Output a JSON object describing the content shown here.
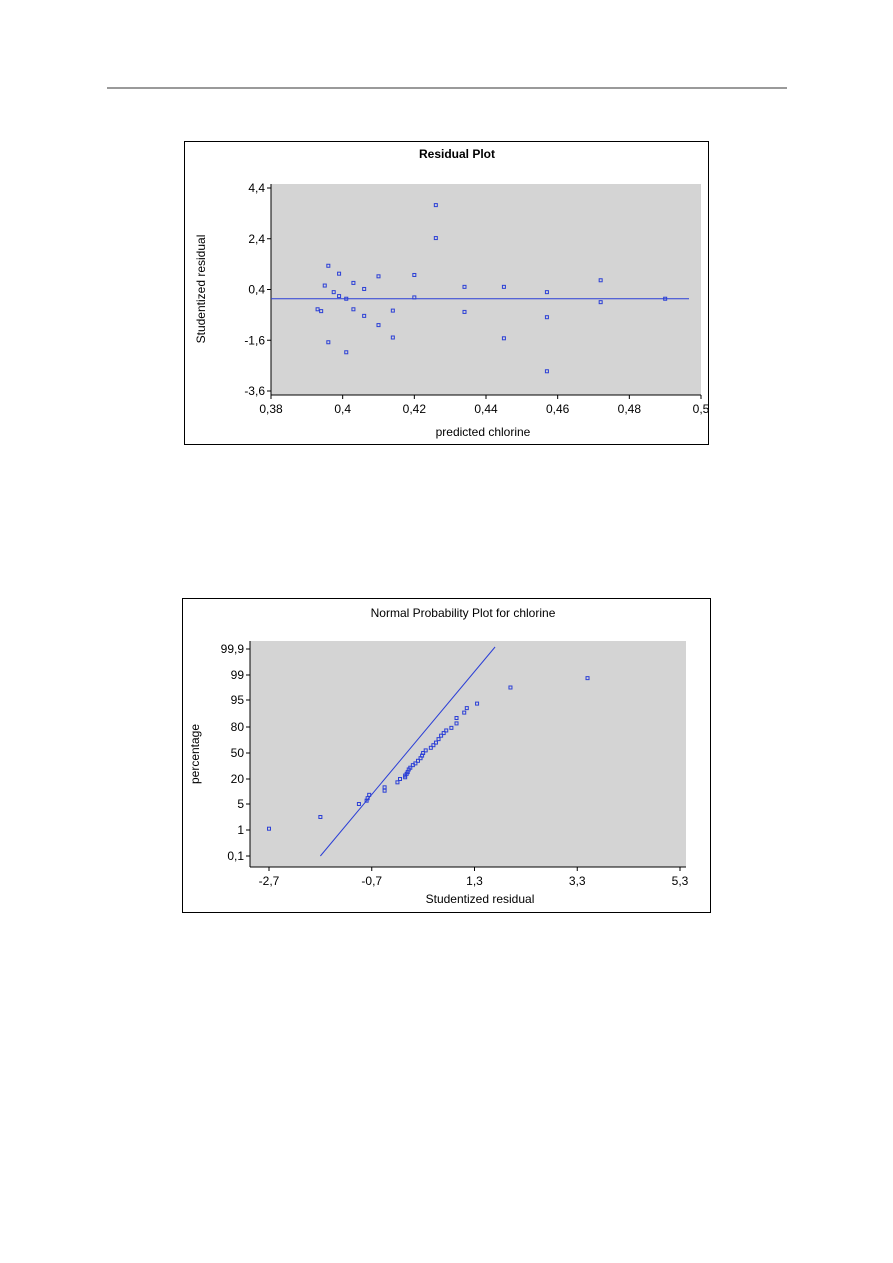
{
  "colors": {
    "plot_area": "#d4d4d4",
    "marker": "#2b3fd6",
    "fit_line": "#2b3fd6",
    "axis": "#000000"
  },
  "chart_data": [
    {
      "type": "scatter",
      "title": "Residual Plot",
      "xlabel": "predicted chlorine",
      "ylabel": "Studentized residual",
      "xlim": [
        0.38,
        0.5
      ],
      "ylim": [
        -3.6,
        4.4
      ],
      "xticks": [
        "0,38",
        "0,4",
        "0,42",
        "0,44",
        "0,46",
        "0,48",
        "0,5"
      ],
      "yticks": [
        "4,4",
        "2,4",
        "0,4",
        "-1,6",
        "-3,6"
      ],
      "grid": false,
      "reference_line_y": 0.05,
      "points": [
        [
          0.393,
          -0.35
        ],
        [
          0.394,
          -0.42
        ],
        [
          0.395,
          0.55
        ],
        [
          0.396,
          1.3
        ],
        [
          0.396,
          -1.6
        ],
        [
          0.3975,
          0.3
        ],
        [
          0.399,
          1.0
        ],
        [
          0.399,
          0.15
        ],
        [
          0.401,
          0.05
        ],
        [
          0.401,
          -1.98
        ],
        [
          0.403,
          -0.35
        ],
        [
          0.403,
          0.65
        ],
        [
          0.406,
          0.42
        ],
        [
          0.406,
          -0.6
        ],
        [
          0.41,
          0.9
        ],
        [
          0.41,
          -0.95
        ],
        [
          0.414,
          -0.4
        ],
        [
          0.414,
          -1.42
        ],
        [
          0.42,
          0.95
        ],
        [
          0.42,
          0.1
        ],
        [
          0.426,
          3.6
        ],
        [
          0.426,
          2.35
        ],
        [
          0.434,
          0.5
        ],
        [
          0.434,
          -0.45
        ],
        [
          0.445,
          0.5
        ],
        [
          0.445,
          -1.45
        ],
        [
          0.457,
          0.3
        ],
        [
          0.457,
          -0.65
        ],
        [
          0.457,
          -2.7
        ],
        [
          0.472,
          0.75
        ],
        [
          0.472,
          -0.08
        ],
        [
          0.49,
          0.05
        ]
      ]
    },
    {
      "type": "scatter",
      "title": "Normal Probability Plot for chlorine",
      "xlabel": "Studentized residual",
      "ylabel": "percentage",
      "xlim": [
        -2.7,
        5.3
      ],
      "xticks": [
        "-2,7",
        "-0,7",
        "1,3",
        "3,3",
        "5,3"
      ],
      "yticks": [
        "99,9",
        "99",
        "95",
        "80",
        "50",
        "20",
        "5",
        "1",
        "0,1"
      ],
      "grid": false,
      "reference_line": [
        [
          -1.7,
          0.1
        ],
        [
          1.7,
          99.9
        ]
      ],
      "points": [
        [
          -2.7,
          1.2
        ],
        [
          -1.7,
          3.0
        ],
        [
          -0.95,
          5.0
        ],
        [
          -0.8,
          7.0
        ],
        [
          -0.78,
          8.5
        ],
        [
          -0.75,
          10.5
        ],
        [
          -0.45,
          13.0
        ],
        [
          -0.45,
          15.0
        ],
        [
          -0.2,
          18.0
        ],
        [
          -0.15,
          20.0
        ],
        [
          -0.05,
          22.0
        ],
        [
          -0.05,
          24.0
        ],
        [
          -0.02,
          26.0
        ],
        [
          0.0,
          28.0
        ],
        [
          0.02,
          31.0
        ],
        [
          0.05,
          33.0
        ],
        [
          0.1,
          36.0
        ],
        [
          0.15,
          38.0
        ],
        [
          0.2,
          41.0
        ],
        [
          0.25,
          44.0
        ],
        [
          0.28,
          47.0
        ],
        [
          0.3,
          50.0
        ],
        [
          0.35,
          53.0
        ],
        [
          0.45,
          56.0
        ],
        [
          0.5,
          59.0
        ],
        [
          0.55,
          62.0
        ],
        [
          0.6,
          66.0
        ],
        [
          0.65,
          70.0
        ],
        [
          0.7,
          73.0
        ],
        [
          0.75,
          76.0
        ],
        [
          0.85,
          79.0
        ],
        [
          0.95,
          82.0
        ],
        [
          0.95,
          85.0
        ],
        [
          1.1,
          88.0
        ],
        [
          1.15,
          90.5
        ],
        [
          1.35,
          93.0
        ],
        [
          2.0,
          97.0
        ],
        [
          3.5,
          98.5
        ]
      ]
    }
  ]
}
